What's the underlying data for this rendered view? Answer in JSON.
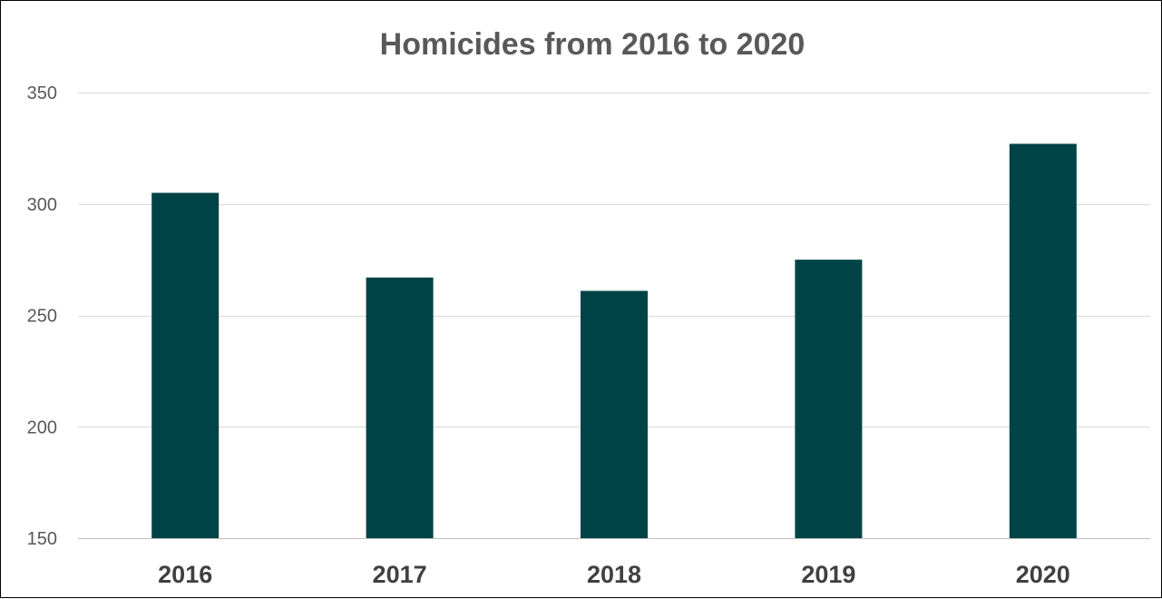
{
  "chart_data": {
    "type": "bar",
    "title": "Homicides from 2016 to 2020",
    "xlabel": "",
    "ylabel": "",
    "categories": [
      "2016",
      "2017",
      "2018",
      "2019",
      "2020"
    ],
    "values": [
      305,
      267,
      261,
      275,
      327
    ],
    "ylim": [
      150,
      350
    ],
    "y_ticks": [
      150,
      200,
      250,
      300,
      350
    ],
    "grid": true,
    "legend": "none",
    "colors": {
      "bar": "#004346",
      "title": "#595959",
      "tick_label": "#595959",
      "x_tick_label": "#404040",
      "gridline": "#d9d9d9",
      "baseline": "#bfbfbf"
    }
  }
}
